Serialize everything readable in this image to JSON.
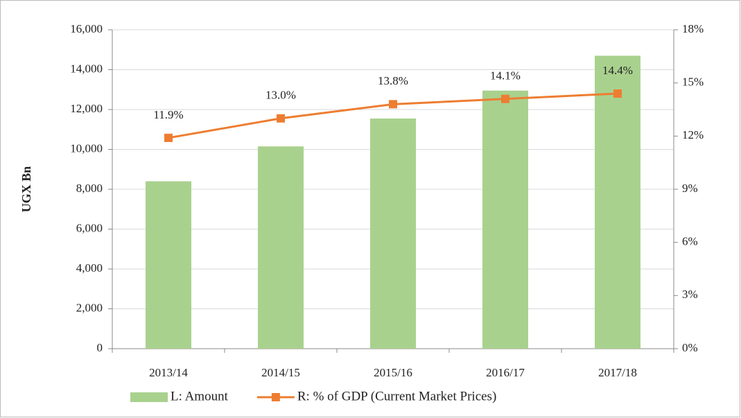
{
  "chart_data": {
    "type": "bar-line",
    "y_label": "UGX Bn",
    "categories": [
      "2013/14",
      "2014/15",
      "2015/16",
      "2016/17",
      "2017/18"
    ],
    "series": [
      {
        "name": "L: Amount",
        "type": "bar",
        "color": "#a9d18e",
        "values": [
          8400,
          10150,
          11550,
          12950,
          14700
        ]
      },
      {
        "name": "R: % of GDP (Current Market Prices)",
        "type": "line",
        "axis": "y2",
        "color": "#ed7d31",
        "values": [
          11.9,
          13.0,
          13.8,
          14.1,
          14.4
        ],
        "value_labels": [
          "11.9%",
          "13.0%",
          "13.8%",
          "14.1%",
          "14.4%"
        ]
      }
    ],
    "ylim": [
      0,
      16000
    ],
    "yticks": [
      0,
      {
        "value": 2000,
        "label": "2,000"
      },
      {
        "value": 4000,
        "label": "4,000"
      },
      {
        "value": 6000,
        "label": "6,000"
      },
      {
        "value": 8000,
        "label": "8,000"
      },
      {
        "value": 10000,
        "label": "10,000"
      },
      {
        "value": 12000,
        "label": "12,000"
      },
      {
        "value": 14000,
        "label": "14,000"
      },
      {
        "value": 16000,
        "label": "16,000"
      }
    ],
    "y2lim": [
      0,
      18
    ],
    "y2ticks": [
      {
        "value": 0,
        "label": "0%"
      },
      {
        "value": 3,
        "label": "3%"
      },
      {
        "value": 6,
        "label": "6%"
      },
      {
        "value": 9,
        "label": "9%"
      },
      {
        "value": 12,
        "label": "12%"
      },
      {
        "value": 15,
        "label": "15%"
      },
      {
        "value": 18,
        "label": "18%"
      }
    ],
    "grid": true,
    "legend": "bottom"
  }
}
